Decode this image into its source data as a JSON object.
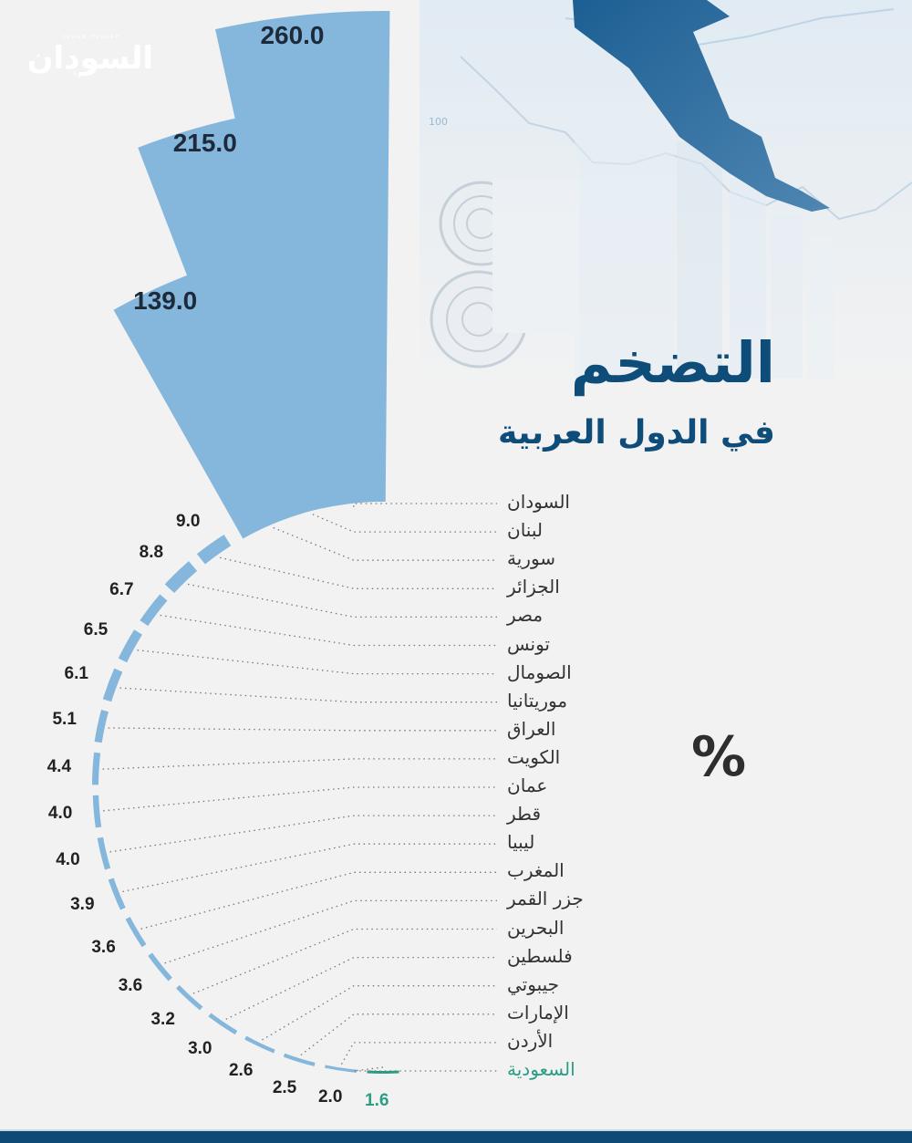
{
  "logo": {
    "name": "السودان",
    "sub": "الحرة",
    "tagline": "SUDAN HURRAH"
  },
  "header": {
    "title": "التضخم",
    "subtitle": "في الدول العربية"
  },
  "unit_label": "%",
  "colors": {
    "bar": "#85b6dc",
    "highlight": "#2a9d85",
    "title": "#0e4c7a",
    "footer": "#0e4a75",
    "background": "#f2f2f2"
  },
  "chart_data": {
    "type": "bar",
    "subtype": "radial",
    "title": "التضخم في الدول العربية",
    "unit": "%",
    "categories": [
      "السودان",
      "لبنان",
      "سورية",
      "الجزائر",
      "مصر",
      "تونس",
      "الصومال",
      "موريتانيا",
      "العراق",
      "الكويت",
      "عمان",
      "قطر",
      "ليبيا",
      "المغرب",
      "جزر القمر",
      "البحرين",
      "فلسطين",
      "جيبوتي",
      "الإمارات",
      "الأردن",
      "السعودية"
    ],
    "values": [
      260.0,
      215.0,
      139.0,
      9.0,
      8.8,
      6.7,
      6.5,
      6.1,
      5.1,
      4.4,
      4.0,
      4.0,
      3.9,
      3.6,
      3.6,
      3.2,
      3.0,
      2.6,
      2.5,
      2.0,
      1.6
    ],
    "value_labels": [
      "260.0",
      "215.0",
      "139.0",
      "9.0",
      "8.8",
      "6.7",
      "6.5",
      "6.1",
      "5.1",
      "4.4",
      "4.0",
      "4.0",
      "3.9",
      "3.6",
      "3.6",
      "3.2",
      "3.0",
      "2.6",
      "2.5",
      "2.0",
      "1.6"
    ],
    "highlight": "السعودية",
    "grid": false,
    "legend": null
  }
}
